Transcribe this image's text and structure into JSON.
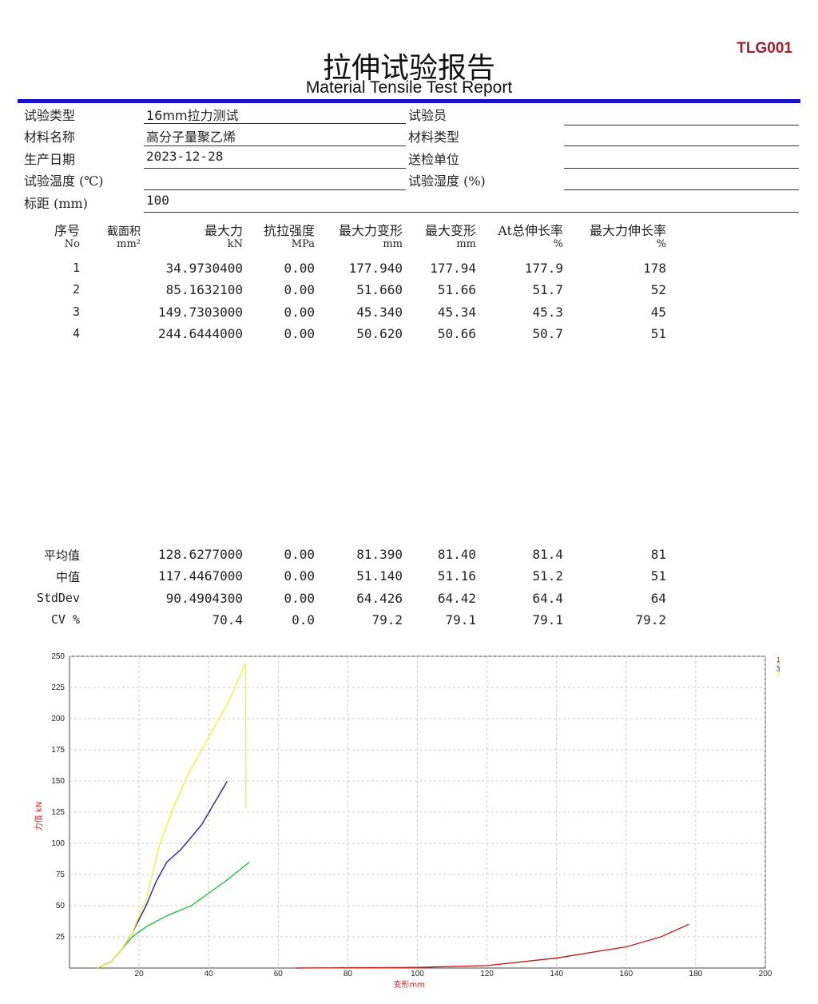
{
  "header": {
    "code": "TLG001",
    "title_zh": "拉伸试验报告",
    "title_en": "Material Tensile Test Report"
  },
  "info": {
    "left": [
      {
        "label": "试验类型",
        "value": "16mm拉力测试"
      },
      {
        "label": "材料名称",
        "value": "高分子量聚乙烯"
      },
      {
        "label": "生产日期",
        "value": "2023-12-28"
      },
      {
        "label": "试验温度 (℃)",
        "value": ""
      },
      {
        "label": "标距 (mm)",
        "value": "100"
      }
    ],
    "right": [
      {
        "label": "试验员",
        "value": ""
      },
      {
        "label": "材料类型",
        "value": ""
      },
      {
        "label": "送检单位",
        "value": ""
      },
      {
        "label": "试验湿度 (%)",
        "value": ""
      }
    ]
  },
  "table": {
    "columns": [
      {
        "name": "序号",
        "unit": "No"
      },
      {
        "name": "截面积",
        "unit": "mm²"
      },
      {
        "name": "最大力",
        "unit": "kN"
      },
      {
        "name": "抗拉强度",
        "unit": "MPa"
      },
      {
        "name": "最大力变形",
        "unit": "mm"
      },
      {
        "name": "最大变形",
        "unit": "mm"
      },
      {
        "name": "At总伸长率",
        "unit": "%"
      },
      {
        "name": "最大力伸长率",
        "unit": "%"
      }
    ],
    "rows": [
      [
        "1",
        "",
        "34.9730400",
        "0.00",
        "177.940",
        "177.94",
        "177.9",
        "178"
      ],
      [
        "2",
        "",
        "85.1632100",
        "0.00",
        "51.660",
        "51.66",
        "51.7",
        "52"
      ],
      [
        "3",
        "",
        "149.7303000",
        "0.00",
        "45.340",
        "45.34",
        "45.3",
        "45"
      ],
      [
        "4",
        "",
        "244.6444000",
        "0.00",
        "50.620",
        "50.66",
        "50.7",
        "51"
      ]
    ],
    "stats": [
      [
        "平均值",
        "",
        "128.6277000",
        "0.00",
        "81.390",
        "81.40",
        "81.4",
        "81"
      ],
      [
        "中值",
        "",
        "117.4467000",
        "0.00",
        "51.140",
        "51.16",
        "51.2",
        "51"
      ],
      [
        "StdDev",
        "",
        "90.4904300",
        "0.00",
        "64.426",
        "64.42",
        "64.4",
        "64"
      ],
      [
        "CV %",
        "",
        "70.4",
        "0.0",
        "79.2",
        "79.1",
        "79.1",
        "79.2"
      ]
    ]
  },
  "chart_data": {
    "type": "line",
    "xlabel": "变形",
    "xunit": "mm",
    "ylabel": "力值",
    "yunit": "kN",
    "xlim": [
      0,
      200
    ],
    "ylim": [
      0,
      250
    ],
    "xticks": [
      20,
      40,
      60,
      80,
      100,
      120,
      140,
      160,
      180,
      200
    ],
    "yticks": [
      25,
      50,
      75,
      100,
      125,
      150,
      175,
      200,
      225,
      250
    ],
    "grid": true,
    "legend": "top-right",
    "series": [
      {
        "name": "1",
        "color": "#c8201e",
        "points": [
          [
            65,
            0
          ],
          [
            100,
            0.5
          ],
          [
            120,
            2
          ],
          [
            140,
            8
          ],
          [
            160,
            17
          ],
          [
            170,
            25
          ],
          [
            178,
            35
          ]
        ]
      },
      {
        "name": "2",
        "color": "#22c43a",
        "points": [
          [
            8,
            0
          ],
          [
            12,
            5
          ],
          [
            15,
            15
          ],
          [
            18,
            25
          ],
          [
            22,
            33
          ],
          [
            28,
            42
          ],
          [
            35,
            50
          ],
          [
            45,
            70
          ],
          [
            51.7,
            85
          ]
        ]
      },
      {
        "name": "3",
        "color": "#1c22b0",
        "points": [
          [
            8,
            0
          ],
          [
            12,
            5
          ],
          [
            15,
            15
          ],
          [
            18,
            28
          ],
          [
            22,
            50
          ],
          [
            25,
            70
          ],
          [
            28,
            85
          ],
          [
            32,
            95
          ],
          [
            38,
            115
          ],
          [
            45.3,
            149.7
          ]
        ]
      },
      {
        "name": "4",
        "color": "#f0f03a",
        "points": [
          [
            8,
            0
          ],
          [
            12,
            5
          ],
          [
            15,
            15
          ],
          [
            18,
            28
          ],
          [
            22,
            55
          ],
          [
            26,
            100
          ],
          [
            30,
            130
          ],
          [
            34,
            155
          ],
          [
            40,
            185
          ],
          [
            46,
            215
          ],
          [
            50.6,
            244.6
          ],
          [
            50.7,
            128
          ]
        ]
      }
    ]
  }
}
